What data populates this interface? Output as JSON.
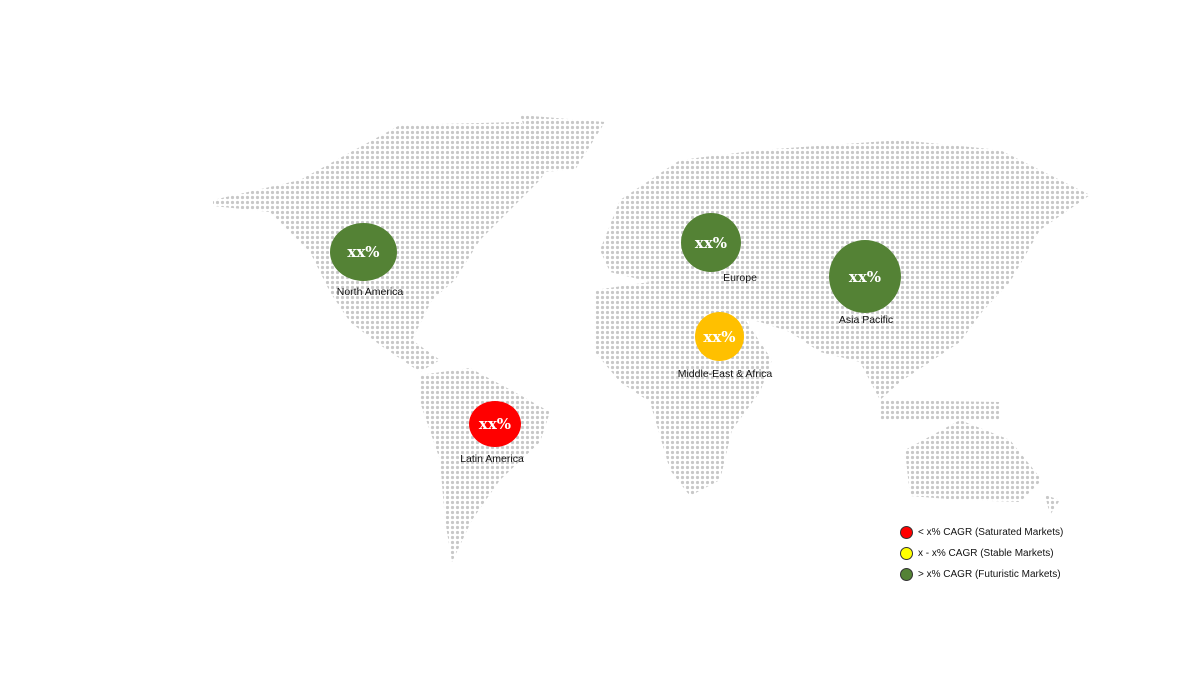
{
  "colors": {
    "futuristic": "#548235",
    "stable_bubble": "#ffc000",
    "saturated": "#ff0000",
    "stable_legend": "#ffff00",
    "map_dots": "#c8c8c8"
  },
  "regions": [
    {
      "name": "North America",
      "value": "xx%",
      "status": "futuristic"
    },
    {
      "name": "Europe",
      "value": "xx%",
      "status": "futuristic"
    },
    {
      "name": "Asia Pacific",
      "value": "xx%",
      "status": "futuristic"
    },
    {
      "name": "Middle-East & Africa",
      "value": "xx%",
      "status": "stable"
    },
    {
      "name": "Latin America",
      "value": "xx%",
      "status": "saturated"
    }
  ],
  "legend": [
    {
      "label": "< x% CAGR (Saturated Markets)",
      "color": "#ff0000"
    },
    {
      "label": "x - x% CAGR (Stable Markets)",
      "color": "#ffff00"
    },
    {
      "label": "> x% CAGR (Futuristic Markets)",
      "color": "#548235"
    }
  ]
}
